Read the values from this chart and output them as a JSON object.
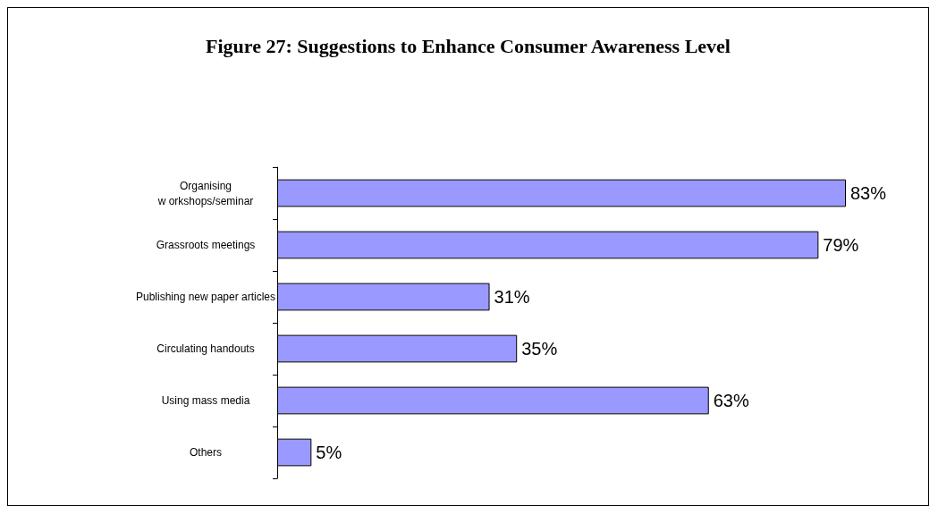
{
  "chart_data": {
    "type": "bar",
    "orientation": "horizontal",
    "title": "Figure 27: Suggestions to Enhance Consumer Awareness Level",
    "categories": [
      "Organising\nw orkshops/seminar",
      "Grassroots meetings",
      "Publishing new paper articles",
      "Circulating handouts",
      "Using mass media",
      "Others"
    ],
    "values": [
      83,
      79,
      31,
      35,
      63,
      5
    ],
    "value_labels": [
      "83%",
      "79%",
      "31%",
      "35%",
      "63%",
      "5%"
    ],
    "color": "#9999ff"
  }
}
